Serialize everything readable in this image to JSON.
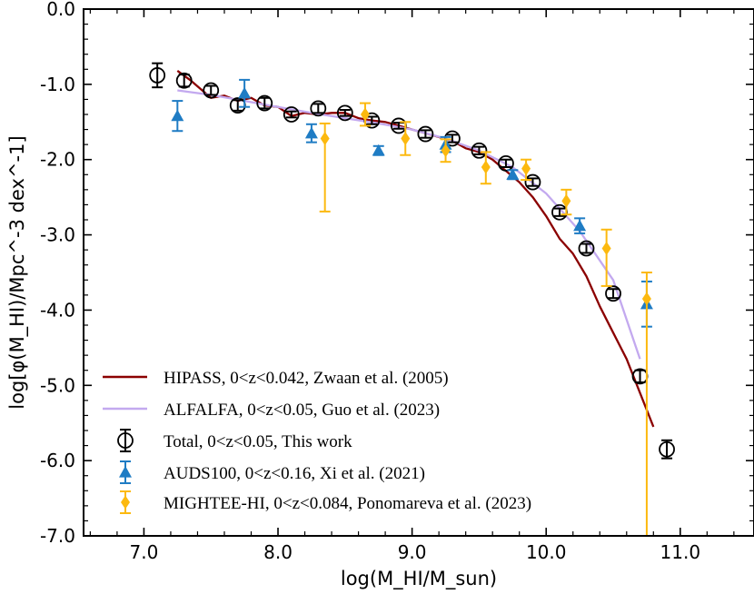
{
  "chart_data": {
    "type": "line",
    "title": "",
    "xlabel": "log(M_HI/M_sun)",
    "ylabel": "log[φ(M_HI)/Mpc^-3 dex^-1]",
    "xlim": [
      6.55,
      11.55
    ],
    "ylim": [
      -7.0,
      0.0
    ],
    "x_ticks": [
      7.0,
      8.0,
      9.0,
      10.0,
      11.0
    ],
    "x_tick_labels": [
      "7.0",
      "8.0",
      "9.0",
      "10.0",
      "11.0"
    ],
    "y_ticks": [
      0.0,
      -1.0,
      -2.0,
      -3.0,
      -4.0,
      -5.0,
      -6.0,
      -7.0
    ],
    "y_tick_labels": [
      "0.0",
      "-1.0",
      "-2.0",
      "-3.0",
      "-4.0",
      "-5.0",
      "-6.0",
      "-7.0"
    ],
    "legend_position": "bottom-left",
    "series": [
      {
        "name": "HIPASS, 0<z<0.042, Zwaan et al. (2005)",
        "style": "line",
        "color": "#8b0000",
        "x": [
          7.25,
          7.35,
          7.5,
          7.6,
          7.7,
          7.8,
          7.9,
          8.0,
          8.1,
          8.2,
          8.3,
          8.4,
          8.5,
          8.6,
          8.7,
          8.8,
          8.9,
          9.0,
          9.1,
          9.2,
          9.3,
          9.4,
          9.5,
          9.6,
          9.7,
          9.8,
          9.9,
          10.0,
          10.1,
          10.2,
          10.3,
          10.4,
          10.5,
          10.6,
          10.7,
          10.8
        ],
        "y": [
          -0.82,
          -0.95,
          -1.18,
          -1.15,
          -1.22,
          -1.18,
          -1.28,
          -1.3,
          -1.42,
          -1.38,
          -1.4,
          -1.38,
          -1.38,
          -1.45,
          -1.48,
          -1.5,
          -1.55,
          -1.6,
          -1.65,
          -1.7,
          -1.75,
          -1.85,
          -1.9,
          -2.0,
          -2.15,
          -2.3,
          -2.5,
          -2.75,
          -3.05,
          -3.25,
          -3.55,
          -3.95,
          -4.3,
          -4.65,
          -5.1,
          -5.55
        ]
      },
      {
        "name": "ALFALFA, 0<z<0.05, Guo et al. (2023)",
        "style": "line",
        "color": "#c3a9ef",
        "x": [
          7.25,
          7.5,
          7.75,
          8.0,
          8.25,
          8.5,
          8.75,
          9.0,
          9.25,
          9.5,
          9.75,
          10.0,
          10.25,
          10.5,
          10.7
        ],
        "y": [
          -1.08,
          -1.14,
          -1.22,
          -1.3,
          -1.38,
          -1.45,
          -1.52,
          -1.6,
          -1.72,
          -1.88,
          -2.1,
          -2.45,
          -2.95,
          -3.6,
          -4.65
        ]
      },
      {
        "name": "Total, 0<z<0.05, This work",
        "style": "open-circle",
        "color": "#000000",
        "x": [
          7.1,
          7.3,
          7.5,
          7.7,
          7.9,
          8.1,
          8.3,
          8.5,
          8.7,
          8.9,
          9.1,
          9.3,
          9.5,
          9.7,
          9.9,
          10.1,
          10.3,
          10.5,
          10.7,
          10.9
        ],
        "y": [
          -0.88,
          -0.95,
          -1.08,
          -1.28,
          -1.25,
          -1.4,
          -1.32,
          -1.38,
          -1.48,
          -1.55,
          -1.66,
          -1.72,
          -1.88,
          -2.05,
          -2.3,
          -2.7,
          -3.18,
          -3.78,
          -4.88,
          -5.85
        ],
        "yerr": [
          0.16,
          0.08,
          0.06,
          0.07,
          0.07,
          0.04,
          0.06,
          0.04,
          0.05,
          0.04,
          0.05,
          0.05,
          0.05,
          0.05,
          0.05,
          0.05,
          0.06,
          0.06,
          0.08,
          0.12
        ]
      },
      {
        "name": "AUDS100, 0<z<0.16, Xi et al. (2021)",
        "style": "triangle",
        "color": "#1f7cc4",
        "x": [
          7.25,
          7.75,
          8.25,
          8.75,
          9.25,
          9.75,
          10.25,
          10.75
        ],
        "y": [
          -1.42,
          -1.12,
          -1.65,
          -1.88,
          -1.8,
          -2.2,
          -2.88,
          -3.92
        ],
        "yerr": [
          0.2,
          0.18,
          0.12,
          0.06,
          0.1,
          0.06,
          0.1,
          0.3
        ]
      },
      {
        "name": "MIGHTEE-HI, 0<z<0.084, Ponomareva et al. (2023)",
        "style": "diamond",
        "color": "#fcb90f",
        "x": [
          8.35,
          8.65,
          8.95,
          9.25,
          9.55,
          9.85,
          10.15,
          10.45,
          10.75
        ],
        "y": [
          -1.72,
          -1.4,
          -1.72,
          -1.88,
          -2.1,
          -2.12,
          -2.55,
          -3.18,
          -3.85
        ],
        "yerr_low": [
          0.97,
          0.15,
          0.22,
          0.15,
          0.22,
          0.15,
          0.18,
          0.5,
          3.15
        ],
        "yerr_high": [
          0.2,
          0.15,
          0.22,
          0.15,
          0.2,
          0.12,
          0.15,
          0.25,
          0.35
        ]
      }
    ]
  }
}
